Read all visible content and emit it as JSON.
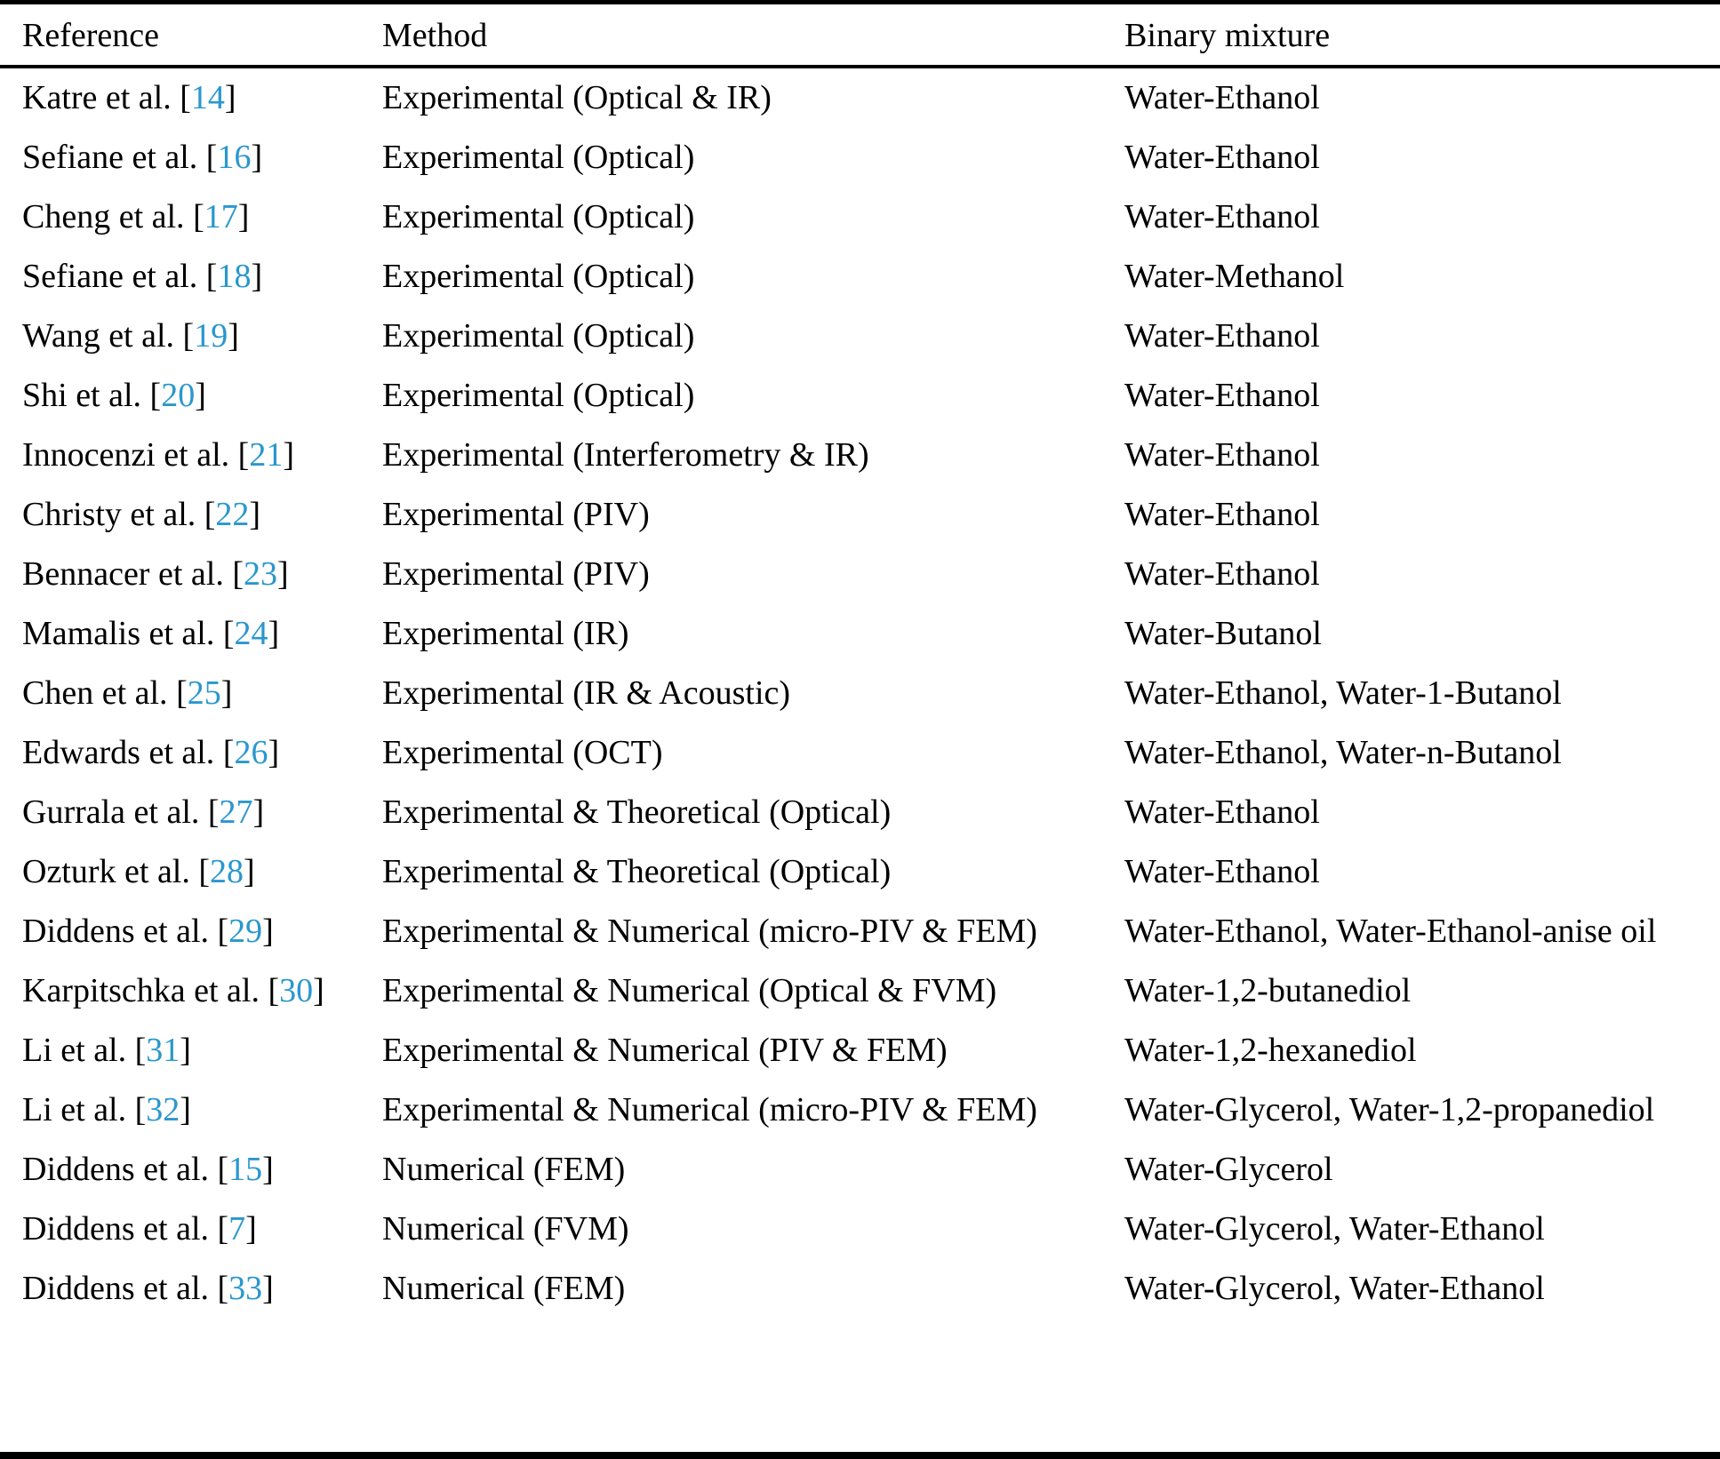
{
  "page": {
    "background": "#ffffff",
    "text_color": "#000000"
  },
  "table": {
    "columns": [
      {
        "id": "reference",
        "label": "Reference"
      },
      {
        "id": "method",
        "label": "Method"
      },
      {
        "id": "mixture",
        "label": "Binary mixture"
      }
    ],
    "citation_brackets": {
      "open": "[",
      "close": "]"
    },
    "citation_color": "#2a97ce",
    "rows": [
      {
        "authors": "Katre et al.",
        "ref_num": "14",
        "method": "Experimental (Optical & IR)",
        "mixture": "Water-Ethanol"
      },
      {
        "authors": "Sefiane et al.",
        "ref_num": "16",
        "method": "Experimental (Optical)",
        "mixture": "Water-Ethanol"
      },
      {
        "authors": "Cheng et al.",
        "ref_num": "17",
        "method": "Experimental (Optical)",
        "mixture": "Water-Ethanol"
      },
      {
        "authors": "Sefiane et al.",
        "ref_num": "18",
        "method": "Experimental (Optical)",
        "mixture": "Water-Methanol"
      },
      {
        "authors": "Wang et al.",
        "ref_num": "19",
        "method": "Experimental (Optical)",
        "mixture": "Water-Ethanol"
      },
      {
        "authors": "Shi et al.",
        "ref_num": "20",
        "method": "Experimental (Optical)",
        "mixture": "Water-Ethanol"
      },
      {
        "authors": "Innocenzi et al.",
        "ref_num": "21",
        "method": "Experimental (Interferometry & IR)",
        "mixture": "Water-Ethanol"
      },
      {
        "authors": "Christy et al.",
        "ref_num": "22",
        "method": "Experimental (PIV)",
        "mixture": "Water-Ethanol"
      },
      {
        "authors": "Bennacer et al.",
        "ref_num": "23",
        "method": "Experimental (PIV)",
        "mixture": "Water-Ethanol"
      },
      {
        "authors": "Mamalis et al.",
        "ref_num": "24",
        "method": "Experimental (IR)",
        "mixture": "Water-Butanol"
      },
      {
        "authors": "Chen et al.",
        "ref_num": "25",
        "method": "Experimental (IR & Acoustic)",
        "mixture": "Water-Ethanol, Water-1-Butanol"
      },
      {
        "authors": "Edwards et al.",
        "ref_num": "26",
        "method": "Experimental (OCT)",
        "mixture": "Water-Ethanol, Water-n-Butanol"
      },
      {
        "authors": "Gurrala et al.",
        "ref_num": "27",
        "method": "Experimental & Theoretical (Optical)",
        "mixture": "Water-Ethanol"
      },
      {
        "authors": "Ozturk et al.",
        "ref_num": "28",
        "method": "Experimental & Theoretical (Optical)",
        "mixture": "Water-Ethanol"
      },
      {
        "authors": "Diddens et al.",
        "ref_num": "29",
        "method": "Experimental & Numerical (micro-PIV & FEM)",
        "mixture": "Water-Ethanol, Water-Ethanol-anise oil"
      },
      {
        "authors": "Karpitschka et al.",
        "ref_num": "30",
        "method": "Experimental & Numerical (Optical & FVM)",
        "mixture": "Water-1,2-butanediol"
      },
      {
        "authors": "Li et al.",
        "ref_num": "31",
        "method": "Experimental & Numerical (PIV & FEM)",
        "mixture": "Water-1,2-hexanediol"
      },
      {
        "authors": "Li et al.",
        "ref_num": "32",
        "method": "Experimental & Numerical (micro-PIV & FEM)",
        "mixture": "Water-Glycerol, Water-1,2-propanediol"
      },
      {
        "authors": "Diddens et al.",
        "ref_num": "15",
        "method": "Numerical (FEM)",
        "mixture": "Water-Glycerol"
      },
      {
        "authors": "Diddens et al.",
        "ref_num": "7",
        "method": "Numerical (FVM)",
        "mixture": "Water-Glycerol, Water-Ethanol"
      },
      {
        "authors": "Diddens et al.",
        "ref_num": "33",
        "method": "Numerical (FEM)",
        "mixture": "Water-Glycerol, Water-Ethanol"
      }
    ]
  }
}
